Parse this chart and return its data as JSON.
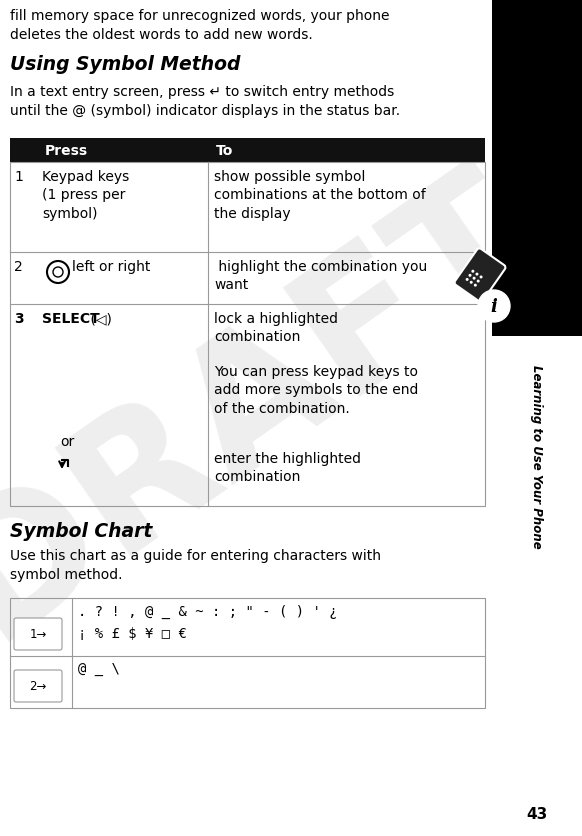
{
  "page_num": "43",
  "sidebar_title": "Learning to Use Your Phone",
  "draft_watermark": "DRAFT",
  "top_text": "fill memory space for unrecognized words, your phone\ndeletes the oldest words to add new words.",
  "section_heading": "Using Symbol Method",
  "intro_text": "In a text entry screen, press ↵ to switch entry methods\nuntil the @ (symbol) indicator displays in the status bar.",
  "table_header_press": "Press",
  "table_header_to": "To",
  "row1_num": "1",
  "row1_press": "Keypad keys\n(1 press per\nsymbol)",
  "row1_to": "show possible symbol\ncombinations at the bottom of\nthe display",
  "row2_num": "2",
  "row2_to": " highlight the combination you\nwant",
  "row3_num": "3",
  "row3_press_bold": "SELECT",
  "row3_press_norm": " (◁)",
  "row3_to_a": "lock a highlighted\ncombination",
  "row3_to_b": "You can press keypad keys to\nadd more symbols to the end\nof the combination.",
  "row3_or": "or",
  "row3_enter_to": "enter the highlighted\ncombination",
  "symbol_chart_heading": "Symbol Chart",
  "symbol_chart_intro": "Use this chart as a guide for entering characters with\nsymbol method.",
  "sym_row1_chars_a": ". ? ! , @ _ & ~ : ; \" - ( ) ' ¿",
  "sym_row1_chars_b": "¡ % £ $ ¥ □ €",
  "sym_row2_chars": "@ _ \\",
  "bg_color": "#ffffff",
  "text_color": "#000000",
  "header_bg": "#111111",
  "header_fg": "#ffffff",
  "table_border": "#999999"
}
